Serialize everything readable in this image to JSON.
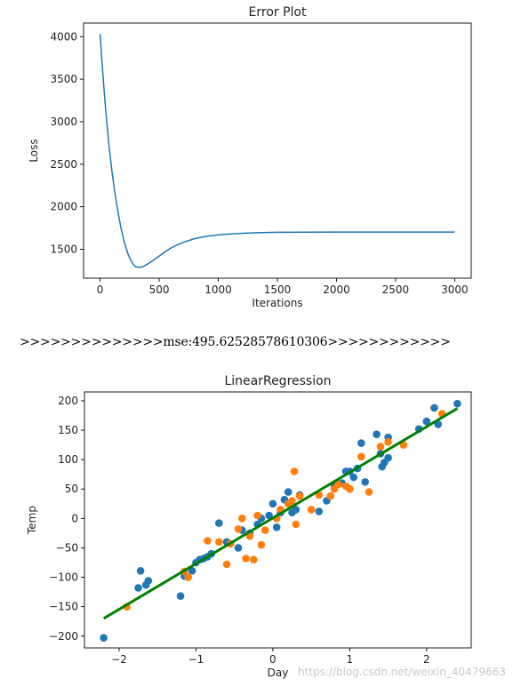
{
  "mse_text": ">>>>>>>>>>>>>>mse:495.62528578610306>>>>>>>>>>>>",
  "watermark": "https://blog.csdn.net/weixin_40479663",
  "chart_data": [
    {
      "type": "line",
      "title": "Error Plot",
      "xlabel": "Iterations",
      "ylabel": "Loss",
      "xlim": [
        -140,
        3140
      ],
      "ylim": [
        1160,
        4160
      ],
      "xticks": [
        0,
        500,
        1000,
        1500,
        2000,
        2500,
        3000
      ],
      "yticks": [
        1500,
        2000,
        2500,
        3000,
        3500,
        4000
      ],
      "color": "#1f77b4",
      "series": [
        {
          "x": [
            0,
            20,
            40,
            60,
            80,
            100,
            120,
            140,
            160,
            180,
            200,
            220,
            240,
            260,
            280,
            300,
            330,
            360,
            400,
            450,
            500,
            550,
            600,
            650,
            700,
            800,
            900,
            1000,
            1100,
            1200,
            1300,
            1400,
            1500,
            1700,
            2000,
            2500,
            3000
          ],
          "y": [
            4030,
            3620,
            3260,
            2940,
            2660,
            2420,
            2210,
            2030,
            1870,
            1730,
            1610,
            1510,
            1430,
            1370,
            1325,
            1295,
            1285,
            1295,
            1325,
            1370,
            1420,
            1470,
            1515,
            1550,
            1580,
            1625,
            1652,
            1670,
            1680,
            1688,
            1693,
            1697,
            1699,
            1701,
            1702,
            1703,
            1703
          ]
        }
      ]
    },
    {
      "type": "scatter",
      "title": "LinearRegression",
      "xlabel": "Day",
      "ylabel": "Temp",
      "xlim": [
        -2.45,
        2.58
      ],
      "ylim": [
        -220,
        215
      ],
      "xticks": [
        -2,
        -1,
        0,
        1,
        2
      ],
      "yticks": [
        -200,
        -150,
        -100,
        -50,
        0,
        50,
        100,
        150,
        200
      ],
      "series": [
        {
          "color": "#1f77b4",
          "points": [
            [
              -2.2,
              -203
            ],
            [
              -1.75,
              -118
            ],
            [
              -1.72,
              -89
            ],
            [
              -1.65,
              -113
            ],
            [
              -1.62,
              -106
            ],
            [
              -1.2,
              -132
            ],
            [
              -1.15,
              -98
            ],
            [
              -1.05,
              -89
            ],
            [
              -1.0,
              -75
            ],
            [
              -0.95,
              -70
            ],
            [
              -0.9,
              -68
            ],
            [
              -0.85,
              -65
            ],
            [
              -0.8,
              -60
            ],
            [
              -0.7,
              -8
            ],
            [
              -0.6,
              -40
            ],
            [
              -0.45,
              -50
            ],
            [
              -0.4,
              -20
            ],
            [
              -0.3,
              -25
            ],
            [
              -0.2,
              -10
            ],
            [
              -0.15,
              0
            ],
            [
              -0.05,
              5
            ],
            [
              0.0,
              25
            ],
            [
              0.05,
              -15
            ],
            [
              0.1,
              10
            ],
            [
              0.15,
              32
            ],
            [
              0.2,
              45
            ],
            [
              0.25,
              10
            ],
            [
              0.3,
              15
            ],
            [
              0.35,
              40
            ],
            [
              0.6,
              12
            ],
            [
              0.7,
              30
            ],
            [
              0.8,
              55
            ],
            [
              0.9,
              60
            ],
            [
              0.95,
              80
            ],
            [
              1.0,
              80
            ],
            [
              1.05,
              70
            ],
            [
              1.1,
              85
            ],
            [
              1.15,
              128
            ],
            [
              1.2,
              62
            ],
            [
              1.35,
              143
            ],
            [
              1.4,
              110
            ],
            [
              1.42,
              88
            ],
            [
              1.45,
              95
            ],
            [
              1.5,
              103
            ],
            [
              1.5,
              138
            ],
            [
              1.9,
              152
            ],
            [
              2.0,
              165
            ],
            [
              2.1,
              188
            ],
            [
              2.15,
              160
            ],
            [
              2.4,
              195
            ]
          ]
        },
        {
          "color": "#ff7f0e",
          "points": [
            [
              -1.9,
              -150
            ],
            [
              -1.15,
              -90
            ],
            [
              -1.1,
              -100
            ],
            [
              -0.85,
              -38
            ],
            [
              -0.7,
              -40
            ],
            [
              -0.6,
              -78
            ],
            [
              -0.55,
              -43
            ],
            [
              -0.45,
              -18
            ],
            [
              -0.4,
              0
            ],
            [
              -0.35,
              -68
            ],
            [
              -0.3,
              -30
            ],
            [
              -0.25,
              -70
            ],
            [
              -0.2,
              5
            ],
            [
              -0.15,
              -45
            ],
            [
              -0.1,
              -20
            ],
            [
              0.05,
              0
            ],
            [
              0.1,
              15
            ],
            [
              0.2,
              25
            ],
            [
              0.25,
              30
            ],
            [
              0.28,
              80
            ],
            [
              0.3,
              -10
            ],
            [
              0.35,
              38
            ],
            [
              0.5,
              15
            ],
            [
              0.6,
              40
            ],
            [
              0.75,
              38
            ],
            [
              0.8,
              50
            ],
            [
              0.85,
              58
            ],
            [
              0.95,
              55
            ],
            [
              1.0,
              50
            ],
            [
              1.15,
              105
            ],
            [
              1.25,
              45
            ],
            [
              1.4,
              122
            ],
            [
              1.5,
              130
            ],
            [
              1.7,
              125
            ],
            [
              2.2,
              178
            ]
          ]
        },
        {
          "type": "line",
          "color": "#008000",
          "x": [
            -2.2,
            2.4
          ],
          "y": [
            -170,
            187
          ]
        }
      ]
    }
  ]
}
